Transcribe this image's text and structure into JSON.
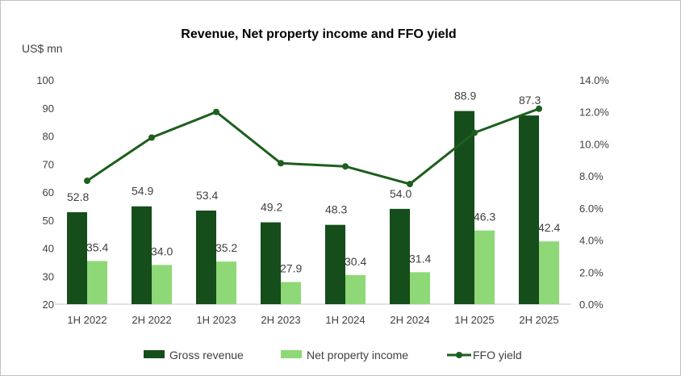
{
  "chart_data": {
    "type": "bar+line",
    "title": "Revenue, Net property income and FFO yield",
    "ylabel": "US$ mn",
    "ylim": [
      20,
      100
    ],
    "y_ticks": [
      "20",
      "30",
      "40",
      "50",
      "60",
      "70",
      "80",
      "90",
      "100"
    ],
    "y2lim": [
      0,
      14
    ],
    "y2_ticks": [
      "0.0%",
      "2.0%",
      "4.0%",
      "6.0%",
      "8.0%",
      "10.0%",
      "12.0%",
      "14.0%"
    ],
    "categories": [
      "1H 2022",
      "2H 2022",
      "1H 2023",
      "2H 2023",
      "1H 2024",
      "2H 2024",
      "1H 2025",
      "2H 2025"
    ],
    "series": [
      {
        "name": "Gross revenue",
        "type": "bar",
        "axis": "left",
        "color": "#154d1b",
        "values": [
          52.8,
          54.9,
          53.4,
          49.2,
          48.3,
          54.0,
          88.9,
          87.3
        ],
        "labels": [
          "52.8",
          "54.9",
          "53.4",
          "49.2",
          "48.3",
          "54.0",
          "88.9",
          "87.3"
        ]
      },
      {
        "name": "Net property income",
        "type": "bar",
        "axis": "left",
        "color": "#8fd877",
        "values": [
          35.4,
          34.0,
          35.2,
          27.9,
          30.4,
          31.4,
          46.3,
          42.4
        ],
        "labels": [
          "35.4",
          "34.0",
          "35.2",
          "27.9",
          "30.4",
          "31.4",
          "46.3",
          "42.4"
        ]
      },
      {
        "name": "FFO yield",
        "type": "line",
        "axis": "right",
        "color": "#1e5e1e",
        "values": [
          7.7,
          10.4,
          12.0,
          8.8,
          8.6,
          7.5,
          10.7,
          12.2
        ]
      }
    ],
    "grid": false,
    "legend": "bottom"
  }
}
